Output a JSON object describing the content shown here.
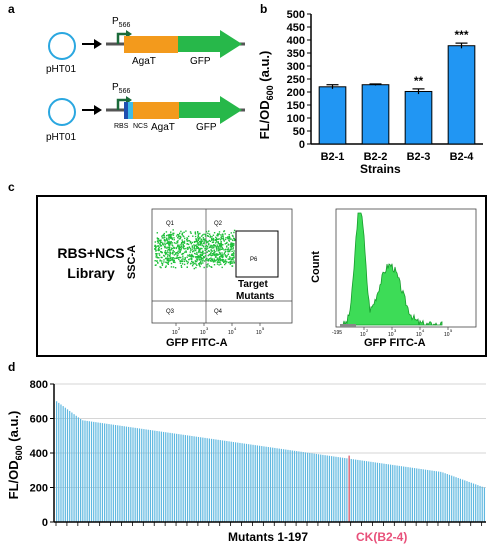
{
  "panel_a": {
    "letter": "a",
    "constructs": [
      {
        "plasmid": "pHT01",
        "promoter": "P",
        "promoter_sub": "566",
        "parts": [
          "AgaT",
          "GFP"
        ]
      },
      {
        "plasmid": "pHT01",
        "promoter": "P",
        "promoter_sub": "566",
        "small_parts": [
          "RBS",
          "NCS"
        ],
        "parts": [
          "AgaT",
          "GFP"
        ]
      }
    ]
  },
  "panel_b": {
    "letter": "b",
    "ylabel_main": "FL/OD",
    "ylabel_sub": "600",
    "ylabel_unit": "(a.u.)",
    "xlabel": "Strains",
    "yticks": [
      "0",
      "50",
      "100",
      "150",
      "200",
      "250",
      "300",
      "350",
      "400",
      "450",
      "500"
    ]
  },
  "panel_c": {
    "letter": "c",
    "library_line1": "RBS+NCS",
    "library_line2": "Library",
    "scatter_ylabel": "SSC-A",
    "scatter_xlabel": "GFP FITC-A",
    "quadrants": [
      "Q1",
      "Q2",
      "Q3",
      "Q4"
    ],
    "gate": "P6",
    "gate_label_line1": "Target",
    "gate_label_line2": "Mutants",
    "hist_ylabel": "Count",
    "hist_xlabel": "GFP FITC-A",
    "hist_min_tick": "-195",
    "log_ticks": [
      "10",
      "10",
      "10",
      "10"
    ],
    "log_exps": [
      "2",
      "3",
      "4",
      "5"
    ]
  },
  "panel_d": {
    "letter": "d",
    "ylabel_main": "FL/OD",
    "ylabel_sub": "600",
    "ylabel_unit": "(a.u.)",
    "xlabel": "Mutants 1-197",
    "ck_label": "CK(B2-4)",
    "yticks": [
      "0",
      "200",
      "400",
      "600",
      "800"
    ]
  },
  "chart_data": [
    {
      "type": "bar",
      "categories": [
        "B2-1",
        "B2-2",
        "B2-3",
        "B2-4"
      ],
      "values": [
        220,
        228,
        202,
        378
      ],
      "errors": [
        8,
        3,
        10,
        10
      ],
      "significance": [
        "",
        "",
        "**",
        "***"
      ],
      "ylim": [
        0,
        500
      ],
      "bar_color": "#2196f3",
      "xlabel": "Strains"
    },
    {
      "type": "bar",
      "n_bars": 197,
      "values_start": 700,
      "values_end": 200,
      "ylim": [
        0,
        800
      ],
      "highlight_value": 385,
      "bar_color": "#5fb8e0",
      "highlight_color": "#e05a6a",
      "xlabel": "Mutants 1-197",
      "ck_label": "CK(B2-4)"
    }
  ]
}
